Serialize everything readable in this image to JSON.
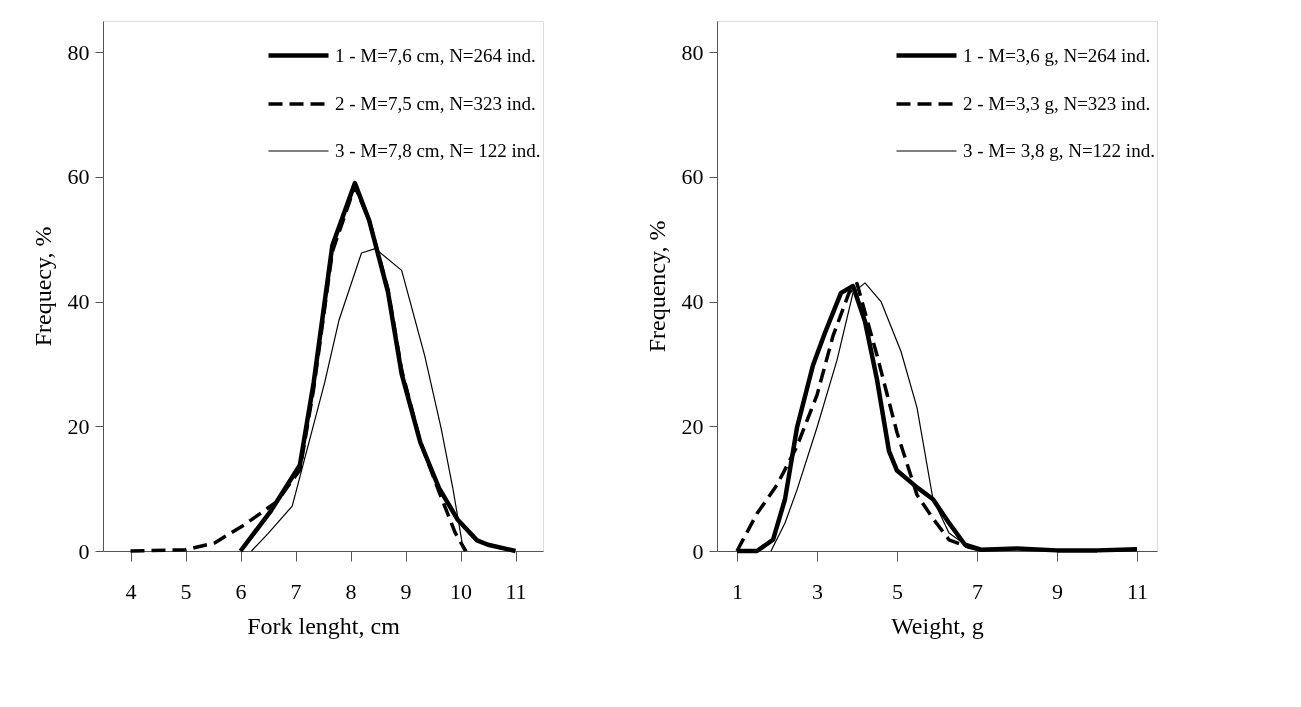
{
  "chart_data": [
    {
      "type": "line",
      "xlabel": "Fork  lenght, cm",
      "ylabel": "Frequecy, %",
      "xlim": [
        3.5,
        11.5
      ],
      "xticks": [
        4,
        5,
        6,
        7,
        8,
        9,
        10,
        11
      ],
      "ylim": [
        0,
        85
      ],
      "yticks": [
        0,
        20,
        40,
        60,
        80
      ],
      "grid": false,
      "legend": "top right",
      "series": [
        {
          "name": "1 - M=7,6 cm, N=264 ind.",
          "color": "#000000",
          "line_style": "solid",
          "x": [
            6.0,
            6.55,
            7.08,
            7.33,
            7.67,
            8.08,
            8.34,
            8.68,
            8.93,
            9.27,
            9.61,
            9.95,
            10.3,
            10.5,
            11.0
          ],
          "values": [
            0,
            6.4,
            13.8,
            27,
            49,
            59,
            53,
            41.6,
            28.4,
            17.4,
            10.1,
            5,
            1.7,
            1,
            0
          ]
        },
        {
          "name": "2 - M=7,5 cm, N=323 ind.",
          "color": "#000000",
          "line_style": "dashed",
          "x": [
            4.0,
            5.0,
            5.53,
            6.07,
            6.66,
            7.08,
            7.33,
            7.67,
            8.08,
            8.34,
            8.68,
            8.93,
            9.27,
            9.61,
            9.9,
            10.09
          ],
          "values": [
            0,
            0.2,
            1.3,
            4.2,
            7.9,
            13,
            26,
            48,
            58.5,
            53,
            42,
            29,
            17.5,
            9.5,
            3,
            0
          ]
        },
        {
          "name": "3 - M=7,8 cm, N= 122 ind.",
          "color": "#000000",
          "line_style": "solid",
          "x": [
            6.2,
            6.5,
            6.94,
            7.53,
            7.79,
            8.2,
            8.45,
            8.93,
            9.35,
            9.65,
            9.86,
            10.03,
            10.12
          ],
          "values": [
            0,
            2.8,
            7.2,
            27,
            37,
            47.8,
            48.5,
            45,
            31.3,
            19.6,
            10.1,
            1.3,
            0
          ]
        }
      ]
    },
    {
      "type": "line",
      "xlabel": "Weight, g",
      "ylabel": "Frequency, %",
      "xlim": [
        0.5,
        11.5
      ],
      "xticks": [
        1,
        3,
        5,
        7,
        9,
        11
      ],
      "ylim": [
        0,
        85
      ],
      "yticks": [
        0,
        20,
        40,
        60,
        80
      ],
      "grid": false,
      "legend": "top right",
      "series": [
        {
          "name": "1 - M=3,6 g, N=264 ind.",
          "color": "#000000",
          "line_style": "solid",
          "x": [
            1.0,
            1.5,
            1.9,
            2.2,
            2.5,
            2.9,
            3.2,
            3.6,
            3.9,
            4.2,
            4.5,
            4.8,
            5.0,
            5.5,
            5.9,
            6.3,
            6.7,
            7.1,
            8.0,
            9.0,
            10.0,
            11.0
          ],
          "values": [
            0,
            0,
            1.8,
            8.3,
            19.8,
            29.8,
            35,
            41.4,
            42.5,
            36.8,
            27.5,
            16,
            12.9,
            10.2,
            8.3,
            4.5,
            1,
            0.2,
            0.4,
            0.1,
            0.1,
            0.3
          ]
        },
        {
          "name": "2 - M=3,3 g, N=323 ind.",
          "color": "#000000",
          "line_style": "dashed",
          "x": [
            1.0,
            1.5,
            2.0,
            2.5,
            3.0,
            3.4,
            3.8,
            4.0,
            4.5,
            5.0,
            5.5,
            5.9,
            6.3,
            6.8,
            7.2
          ],
          "values": [
            0,
            6,
            10.6,
            16.8,
            25,
            34.5,
            41.4,
            42.9,
            31.4,
            19,
            9,
            5.2,
            1.8,
            0.6,
            0
          ]
        },
        {
          "name": "3 - M= 3,8 g, N=122 ind.",
          "color": "#000000",
          "line_style": "solid",
          "x": [
            1.85,
            2.2,
            2.5,
            3.0,
            3.5,
            3.9,
            4.2,
            4.6,
            5.1,
            5.5,
            5.9,
            6.3,
            6.8,
            7.2
          ],
          "values": [
            0,
            4.5,
            9.8,
            19.8,
            30.6,
            41.4,
            43,
            40,
            32,
            23,
            8.3,
            2.9,
            0.6,
            0
          ]
        }
      ]
    }
  ]
}
